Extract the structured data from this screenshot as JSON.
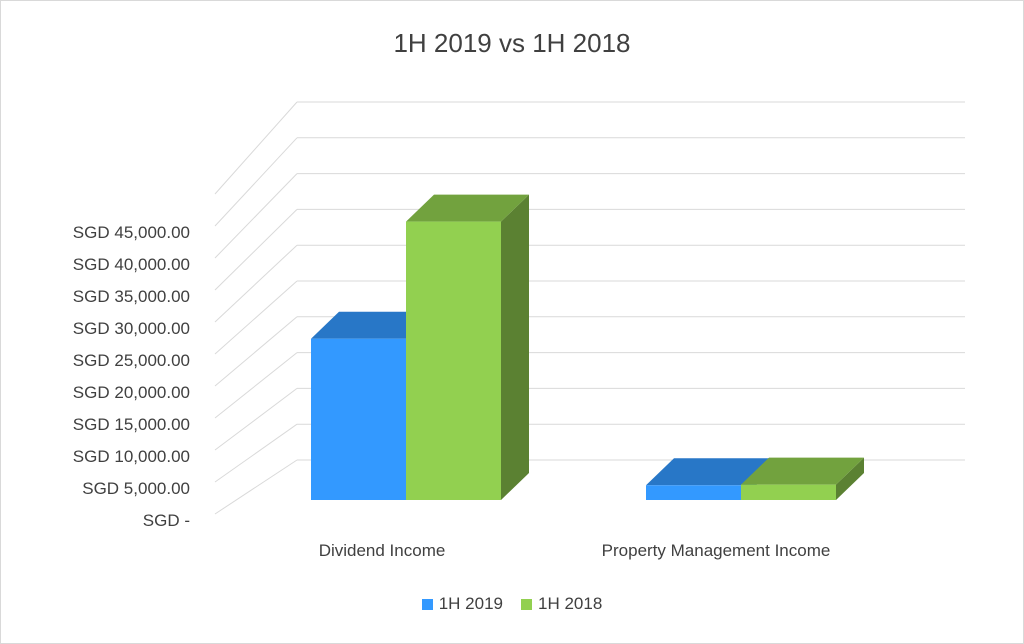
{
  "colors": {
    "series_2019": "#3399ff",
    "series_2018": "#92d050",
    "gridline": "#d9d9d9",
    "text": "#404040"
  },
  "chart_data": {
    "type": "bar",
    "title": "1H 2019 vs 1H 2018",
    "categories": [
      "Dividend Income",
      "Property Management Income"
    ],
    "series": [
      {
        "name": "1H 2019",
        "values": [
          25200,
          2300
        ]
      },
      {
        "name": "1H 2018",
        "values": [
          43500,
          2400
        ]
      }
    ],
    "yticks": [
      {
        "value": 0,
        "label": "SGD -"
      },
      {
        "value": 5000,
        "label": "SGD 5,000.00"
      },
      {
        "value": 10000,
        "label": "SGD 10,000.00"
      },
      {
        "value": 15000,
        "label": "SGD 15,000.00"
      },
      {
        "value": 20000,
        "label": "SGD 20,000.00"
      },
      {
        "value": 25000,
        "label": "SGD 25,000.00"
      },
      {
        "value": 30000,
        "label": "SGD 30,000.00"
      },
      {
        "value": 35000,
        "label": "SGD 35,000.00"
      },
      {
        "value": 40000,
        "label": "SGD 40,000.00"
      },
      {
        "value": 45000,
        "label": "SGD 45,000.00"
      },
      {
        "value": 50000,
        "label": ""
      }
    ],
    "ylim": [
      0,
      50000
    ],
    "grid": true,
    "legend_position": "bottom",
    "style": "3d-clustered-column"
  }
}
